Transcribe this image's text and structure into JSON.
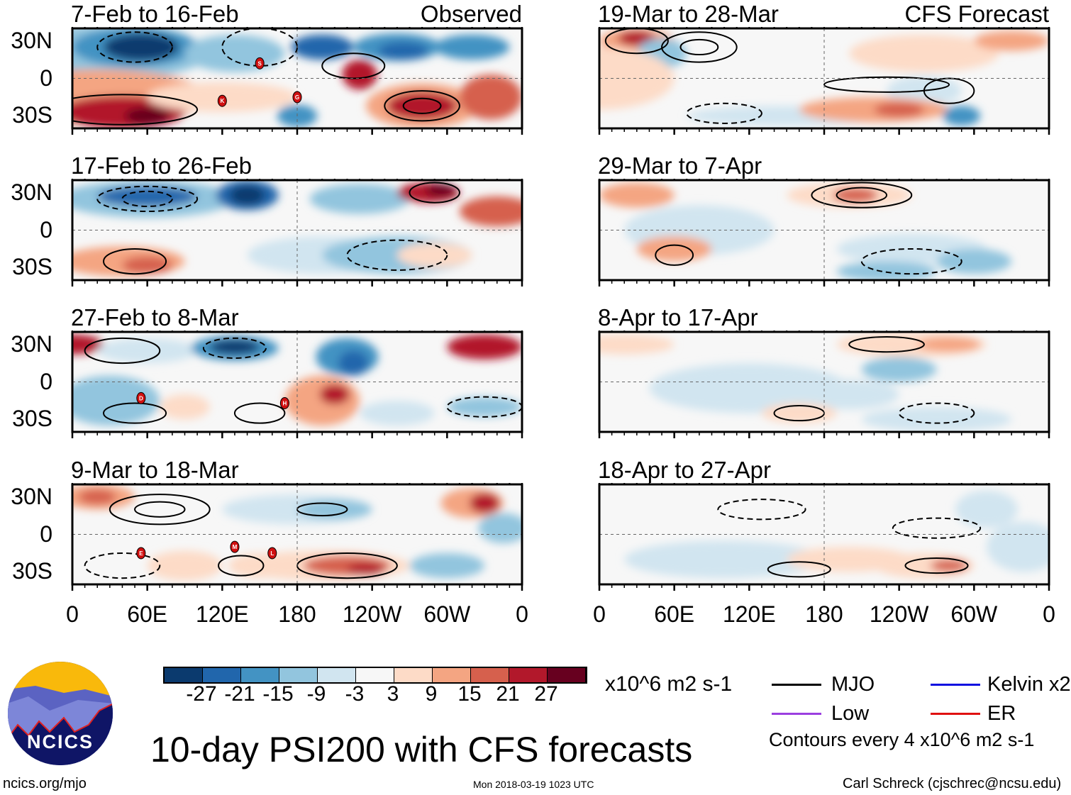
{
  "title": "10-day PSI200 with CFS forecasts",
  "units": "x10^6 m2 s-1",
  "contour_note": "Contours every 4 x10^6 m2 s-1",
  "footer": {
    "left": "ncics.org/mjo",
    "center": "Mon 2018-03-19 1023 UTC",
    "right": "Carl Schreck (cjschrec@ncsu.edu)"
  },
  "logo_text": "NCICS",
  "legend": [
    {
      "label": "MJO",
      "color": "#000000"
    },
    {
      "label": "Kelvin x2",
      "color": "#1010e0"
    },
    {
      "label": "Low",
      "color": "#9b3fe0"
    },
    {
      "label": "ER",
      "color": "#e01010"
    }
  ],
  "chart_data": {
    "type": "heatmap",
    "variable": "200-hPa streamfunction anomaly (10-day mean)",
    "xticks": [
      "0",
      "60E",
      "120E",
      "180",
      "120W",
      "60W",
      "0"
    ],
    "yticks": [
      "30N",
      "0",
      "30S"
    ],
    "colorbar": {
      "levels": [
        -27,
        -21,
        -15,
        -9,
        -3,
        3,
        9,
        15,
        21,
        27
      ],
      "colors": [
        "#0b3a6e",
        "#2166ac",
        "#4393c3",
        "#92c5de",
        "#d1e5f0",
        "#f7f7f7",
        "#fddbc7",
        "#f4a582",
        "#d6604d",
        "#b2182b",
        "#67001f"
      ]
    },
    "panels": [
      {
        "title": "7-Feb to 16-Feb",
        "tag": "Observed",
        "storms": [
          "S",
          "K",
          "G"
        ]
      },
      {
        "title": "17-Feb to 26-Feb",
        "storms": []
      },
      {
        "title": "27-Feb to 8-Mar",
        "storms": [
          "D",
          "H"
        ]
      },
      {
        "title": "9-Mar to 18-Mar",
        "storms": [
          "E",
          "M",
          "L"
        ]
      },
      {
        "title": "19-Mar to 28-Mar",
        "tag": "CFS Forecast",
        "storms": []
      },
      {
        "title": "29-Mar to 7-Apr",
        "storms": []
      },
      {
        "title": "8-Apr to 17-Apr",
        "storms": []
      },
      {
        "title": "18-Apr to 27-Apr",
        "storms": []
      }
    ]
  }
}
